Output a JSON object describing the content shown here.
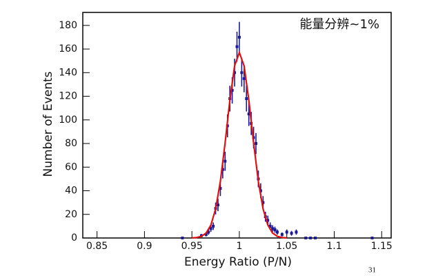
{
  "chart_data": {
    "type": "scatter",
    "xlabel": "Energy Ratio (P/N)",
    "ylabel": "Number of Events",
    "annotation": "能量分辨~1%",
    "page_number": "31",
    "xlim": [
      0.835,
      1.16
    ],
    "xticks": [
      0.85,
      0.9,
      0.95,
      1,
      1.05,
      1.1,
      1.15
    ],
    "ylim": [
      0,
      191
    ],
    "yticks": [
      0,
      20,
      40,
      60,
      80,
      100,
      120,
      140,
      160,
      180
    ],
    "series": [
      {
        "color": "#1a1a9a",
        "x": [
          0.94,
          0.96,
          0.965,
          0.9675,
          0.97,
          0.9725,
          0.975,
          0.9775,
          0.98,
          0.9825,
          0.985,
          0.9875,
          0.99,
          0.9925,
          0.995,
          0.9975,
          1.0,
          1.0025,
          1.005,
          1.0075,
          1.01,
          1.0125,
          1.015,
          1.0175,
          1.02,
          1.0225,
          1.025,
          1.0275,
          1.03,
          1.0325,
          1.035,
          1.0375,
          1.04,
          1.045,
          1.05,
          1.055,
          1.06,
          1.07,
          1.075,
          1.08,
          1.14
        ],
        "values": [
          0,
          2,
          3,
          5,
          8,
          10,
          25,
          28,
          42,
          58,
          65,
          95,
          118,
          125,
          140,
          162,
          170,
          140,
          135,
          118,
          105,
          97,
          85,
          80,
          50,
          40,
          30,
          18,
          15,
          10,
          8,
          7,
          5,
          3,
          5,
          4,
          5,
          0,
          0,
          0,
          0
        ],
        "errors": [
          0,
          1.4,
          1.7,
          2.2,
          2.8,
          3.2,
          5,
          5.3,
          6.5,
          7.6,
          8.1,
          9.7,
          10.9,
          11.2,
          11.8,
          12.7,
          13,
          11.8,
          11.6,
          10.9,
          10.2,
          9.8,
          9.2,
          8.9,
          7.1,
          6.3,
          5.5,
          4.2,
          3.9,
          3.2,
          2.8,
          2.6,
          2.2,
          1.7,
          2.2,
          2,
          2.2,
          0,
          0,
          0,
          0
        ]
      },
      {
        "type": "line",
        "color": "#e01010",
        "x": [
          0.95,
          0.955,
          0.96,
          0.965,
          0.97,
          0.975,
          0.98,
          0.985,
          0.99,
          0.995,
          1.0,
          1.005,
          1.01,
          1.015,
          1.02,
          1.025,
          1.03,
          1.035,
          1.04,
          1.045,
          1.05
        ],
        "values": [
          0.1,
          0.4,
          1.4,
          4.2,
          11,
          24.6,
          48,
          80.6,
          116.7,
          145.8,
          157,
          145.8,
          116.7,
          80.6,
          48,
          24.6,
          11,
          4.2,
          1.4,
          0.4,
          0.1
        ]
      }
    ]
  }
}
